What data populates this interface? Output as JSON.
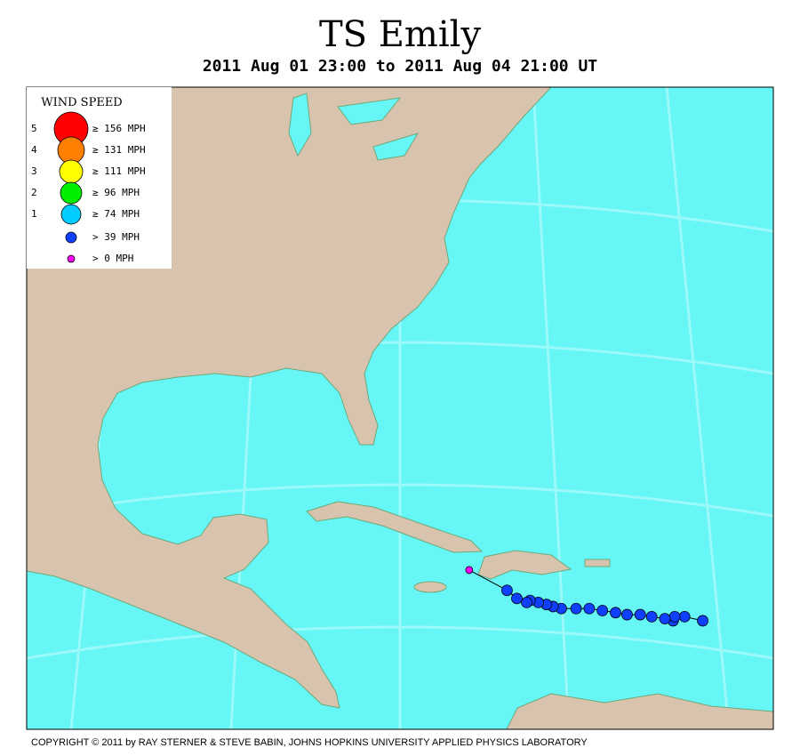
{
  "header": {
    "title": "TS Emily",
    "subtitle": "2011 Aug 01 23:00 to 2011 Aug 04 21:00 UT"
  },
  "legend": {
    "title": "WIND SPEED",
    "entries": [
      {
        "category": "5",
        "label": "≥ 156 MPH",
        "color": "#ff0000"
      },
      {
        "category": "4",
        "label": "≥ 131 MPH",
        "color": "#ff8000"
      },
      {
        "category": "3",
        "label": "≥ 111 MPH",
        "color": "#ffff00"
      },
      {
        "category": "2",
        "label": "≥ 96 MPH",
        "color": "#00ee00"
      },
      {
        "category": "1",
        "label": "≥ 74 MPH",
        "color": "#00ccff"
      },
      {
        "category": null,
        "label": "> 39 MPH",
        "color": "#1040ff"
      },
      {
        "category": null,
        "label": "> 0 MPH",
        "color": "#ff00ff"
      }
    ]
  },
  "track": {
    "lon": [
      -60.2,
      -61.3,
      -62.0,
      -61.9,
      -62.5,
      -63.3,
      -64.0,
      -64.8,
      -65.5,
      -66.3,
      -67.1,
      -67.9,
      -68.8,
      -69.3,
      -69.7,
      -70.2,
      -70.7,
      -70.9,
      -71.5,
      -72.1,
      -74.4
    ],
    "lat": [
      16.3,
      16.5,
      16.3,
      16.5,
      16.4,
      16.5,
      16.6,
      16.6,
      16.7,
      16.8,
      16.9,
      16.9,
      16.9,
      17.0,
      17.1,
      17.2,
      17.3,
      17.2,
      17.4,
      17.8,
      18.8
    ],
    "colors": [
      "#1040ff",
      "#1040ff",
      "#1040ff",
      "#1040ff",
      "#1040ff",
      "#1040ff",
      "#1040ff",
      "#1040ff",
      "#1040ff",
      "#1040ff",
      "#1040ff",
      "#1040ff",
      "#1040ff",
      "#1040ff",
      "#1040ff",
      "#1040ff",
      "#1040ff",
      "#1040ff",
      "#1040ff",
      "#1040ff",
      "#ff00ff"
    ]
  },
  "footer": {
    "copyright": "COPYRIGHT © 2011 by RAY STERNER & STEVE BABIN, JOHNS HOPKINS UNIVERSITY APPLIED PHYSICS LABORATORY"
  }
}
